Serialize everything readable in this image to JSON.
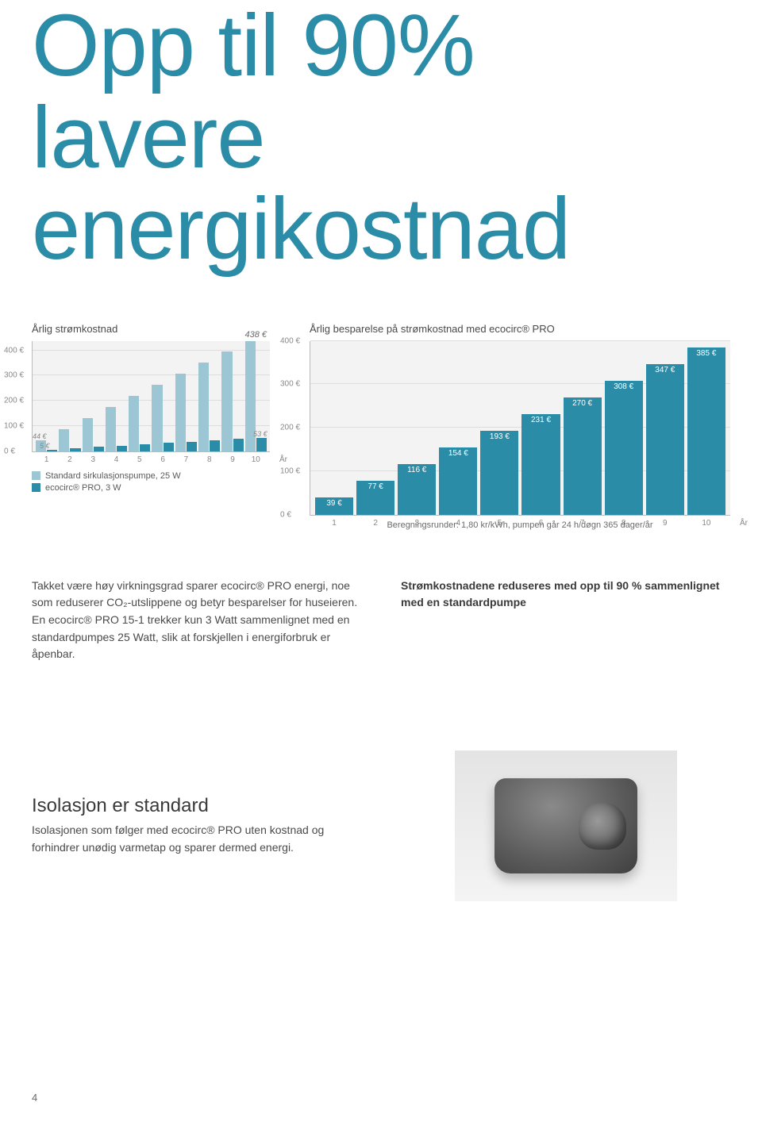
{
  "headline": {
    "line1": "Opp til 90% lavere",
    "line2": "energikostnad",
    "color": "#2b8ca8"
  },
  "chart1": {
    "title": "Årlig strømkostnad",
    "type": "grouped-bar",
    "top_value_label": "438 €",
    "yticks": [
      "400 €",
      "300 €",
      "200 €",
      "100 €",
      "0 €"
    ],
    "ylim": [
      0,
      438
    ],
    "x_categories": [
      "1",
      "2",
      "3",
      "4",
      "5",
      "6",
      "7",
      "8",
      "9",
      "10"
    ],
    "x_unit": "År",
    "series": [
      {
        "name": "Standard sirkulasjonspumpe, 25 W",
        "color": "#9cc6d4",
        "values": [
          44,
          88,
          131,
          175,
          219,
          263,
          307,
          350,
          394,
          438
        ]
      },
      {
        "name": "ecocirc® PRO, 3 W",
        "color": "#2b8ca8",
        "values": [
          5,
          11,
          16,
          21,
          27,
          32,
          37,
          42,
          48,
          53
        ]
      }
    ],
    "bar_labels": [
      {
        "text": "44 €",
        "col": 0,
        "series": 0
      },
      {
        "text": "5 €",
        "col": 0,
        "series": 1
      },
      {
        "text": "53 €",
        "col": 9,
        "series": 1
      }
    ],
    "background_color": "#f3f3f3",
    "grid_color": "#dddddd"
  },
  "chart2": {
    "title": "Årlig besparelse på strømkostnad med ecocirc® PRO",
    "type": "bar",
    "yticks": [
      "400 €",
      "300 €",
      "200 €",
      "100 €",
      "0 €"
    ],
    "ylim": [
      0,
      400
    ],
    "x_categories": [
      "1",
      "2",
      "3",
      "4",
      "5",
      "6",
      "7",
      "8",
      "9",
      "10"
    ],
    "x_unit": "År",
    "values": [
      39,
      77,
      116,
      154,
      193,
      231,
      270,
      308,
      347,
      385
    ],
    "value_labels": [
      "39 €",
      "77 €",
      "116 €",
      "154 €",
      "193 €",
      "231 €",
      "270 €",
      "308 €",
      "347 €",
      "385 €"
    ],
    "bar_color": "#2b8ca8",
    "background_color": "#f3f3f3",
    "grid_color": "#dddddd",
    "footnote": "Beregningsrunder: 1,80 kr/kWh, pumpen går 24 h/døgn 365 dager/år"
  },
  "body_left": "Takket være høy virkningsgrad sparer ecocirc® PRO energi, noe som reduserer CO₂-utslippene og betyr besparelser for huseieren. En ecocirc® PRO 15-1 trekker kun 3 Watt sammenlignet med en standardpumpes 25 Watt, slik at forskjellen i energiforbruk er åpenbar.",
  "body_right_lead": "Strømkostnadene reduseres med opp til 90 % sammenlignet med en standardpumpe",
  "isolation": {
    "title": "Isolasjon er standard",
    "body": "Isolasjonen som følger med ecocirc® PRO uten kostnad og forhindrer unødig varmetap og sparer dermed energi."
  },
  "page_number": "4"
}
